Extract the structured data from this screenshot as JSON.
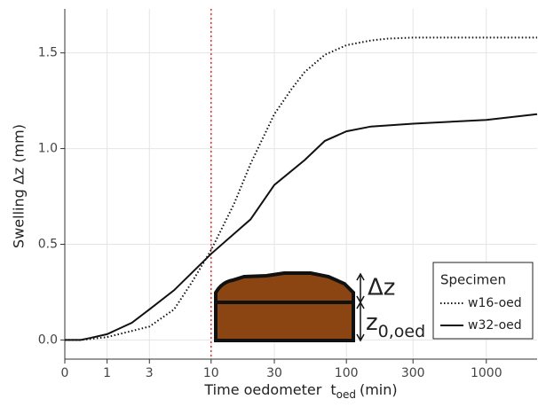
{
  "chart_data": {
    "type": "line",
    "x_scale": "log1p",
    "y_label": "Swelling Δz (mm)",
    "x_label": {
      "text": "Time oedometer",
      "var": "t",
      "sub": "oed",
      "unit": "(min)"
    },
    "xlim": [
      0,
      2300
    ],
    "ylim": [
      -0.1,
      1.73
    ],
    "xticks": [
      0,
      1,
      3,
      10,
      30,
      100,
      300,
      1000
    ],
    "yticks": [
      {
        "value": 0,
        "label": "0.0"
      },
      {
        "value": 0.5,
        "label": "0.5"
      },
      {
        "value": 1,
        "label": "1.0"
      },
      {
        "value": 1.5,
        "label": "1.5"
      }
    ],
    "grid": true,
    "vline": {
      "x": 10,
      "color": "#e03030"
    },
    "legend": {
      "title": "Specimen",
      "position": "bottom-right"
    },
    "annotations": {
      "dz": "Δz",
      "z0": "z",
      "z0_sub": "0,oed"
    },
    "series": [
      {
        "name": "w16-oed",
        "color": "#111",
        "style": "dotted",
        "x": [
          0,
          0.3,
          1,
          3,
          5,
          7,
          10,
          15,
          20,
          30,
          40,
          50,
          70,
          100,
          150,
          200,
          300,
          1000,
          2300
        ],
        "values": [
          0,
          0,
          0.015,
          0.07,
          0.16,
          0.3,
          0.47,
          0.71,
          0.92,
          1.18,
          1.31,
          1.4,
          1.49,
          1.54,
          1.565,
          1.575,
          1.58,
          1.58,
          1.58
        ]
      },
      {
        "name": "w32-oed",
        "color": "#111",
        "style": "solid",
        "x": [
          0,
          0.3,
          0.5,
          1,
          2,
          3,
          5,
          10,
          20,
          30,
          50,
          70,
          100,
          150,
          300,
          1000,
          2300
        ],
        "values": [
          0,
          0,
          0.01,
          0.03,
          0.09,
          0.16,
          0.26,
          0.45,
          0.63,
          0.81,
          0.94,
          1.04,
          1.09,
          1.115,
          1.13,
          1.15,
          1.18
        ]
      }
    ]
  }
}
